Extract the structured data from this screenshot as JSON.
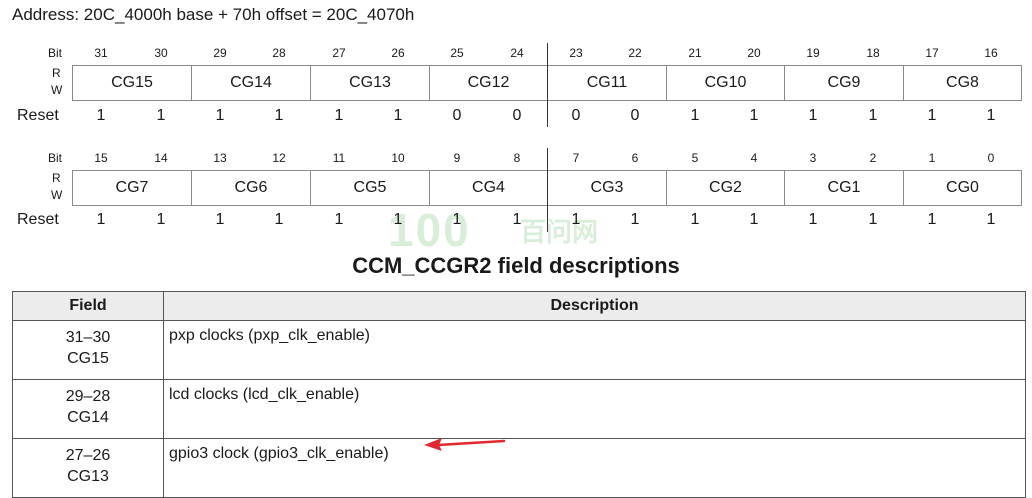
{
  "address": "Address: 20C_4000h base + 70h offset = 20C_4070h",
  "register_rows": [
    {
      "bit_label": "Bit",
      "r_label": "R",
      "w_label": "W",
      "reset_label": "Reset",
      "bits": [
        "31",
        "30",
        "29",
        "28",
        "27",
        "26",
        "25",
        "24",
        "23",
        "22",
        "21",
        "20",
        "19",
        "18",
        "17",
        "16"
      ],
      "fields": [
        "CG15",
        "CG14",
        "CG13",
        "CG12",
        "CG11",
        "CG10",
        "CG9",
        "CG8"
      ],
      "reset": [
        "1",
        "1",
        "1",
        "1",
        "1",
        "1",
        "0",
        "0",
        "0",
        "0",
        "1",
        "1",
        "1",
        "1",
        "1",
        "1"
      ]
    },
    {
      "bit_label": "Bit",
      "r_label": "R",
      "w_label": "W",
      "reset_label": "Reset",
      "bits": [
        "15",
        "14",
        "13",
        "12",
        "11",
        "10",
        "9",
        "8",
        "7",
        "6",
        "5",
        "4",
        "3",
        "2",
        "1",
        "0"
      ],
      "fields": [
        "CG7",
        "CG6",
        "CG5",
        "CG4",
        "CG3",
        "CG2",
        "CG1",
        "CG0"
      ],
      "reset": [
        "1",
        "1",
        "1",
        "1",
        "1",
        "1",
        "1",
        "1",
        "1",
        "1",
        "1",
        "1",
        "1",
        "1",
        "1",
        "1"
      ]
    }
  ],
  "watermark": {
    "digits": "100",
    "chinese": "百问网"
  },
  "table_title": "CCM_CCGR2 field descriptions",
  "table": {
    "headers": {
      "field": "Field",
      "description": "Description"
    },
    "rows": [
      {
        "bits": "31–30",
        "name": "CG15",
        "description": "pxp clocks (pxp_clk_enable)"
      },
      {
        "bits": "29–28",
        "name": "CG14",
        "description": "lcd clocks (lcd_clk_enable)"
      },
      {
        "bits": "27–26",
        "name": "CG13",
        "description": "gpio3 clock (gpio3_clk_enable)"
      }
    ]
  },
  "annotation_arrow_color": "#e0282e"
}
